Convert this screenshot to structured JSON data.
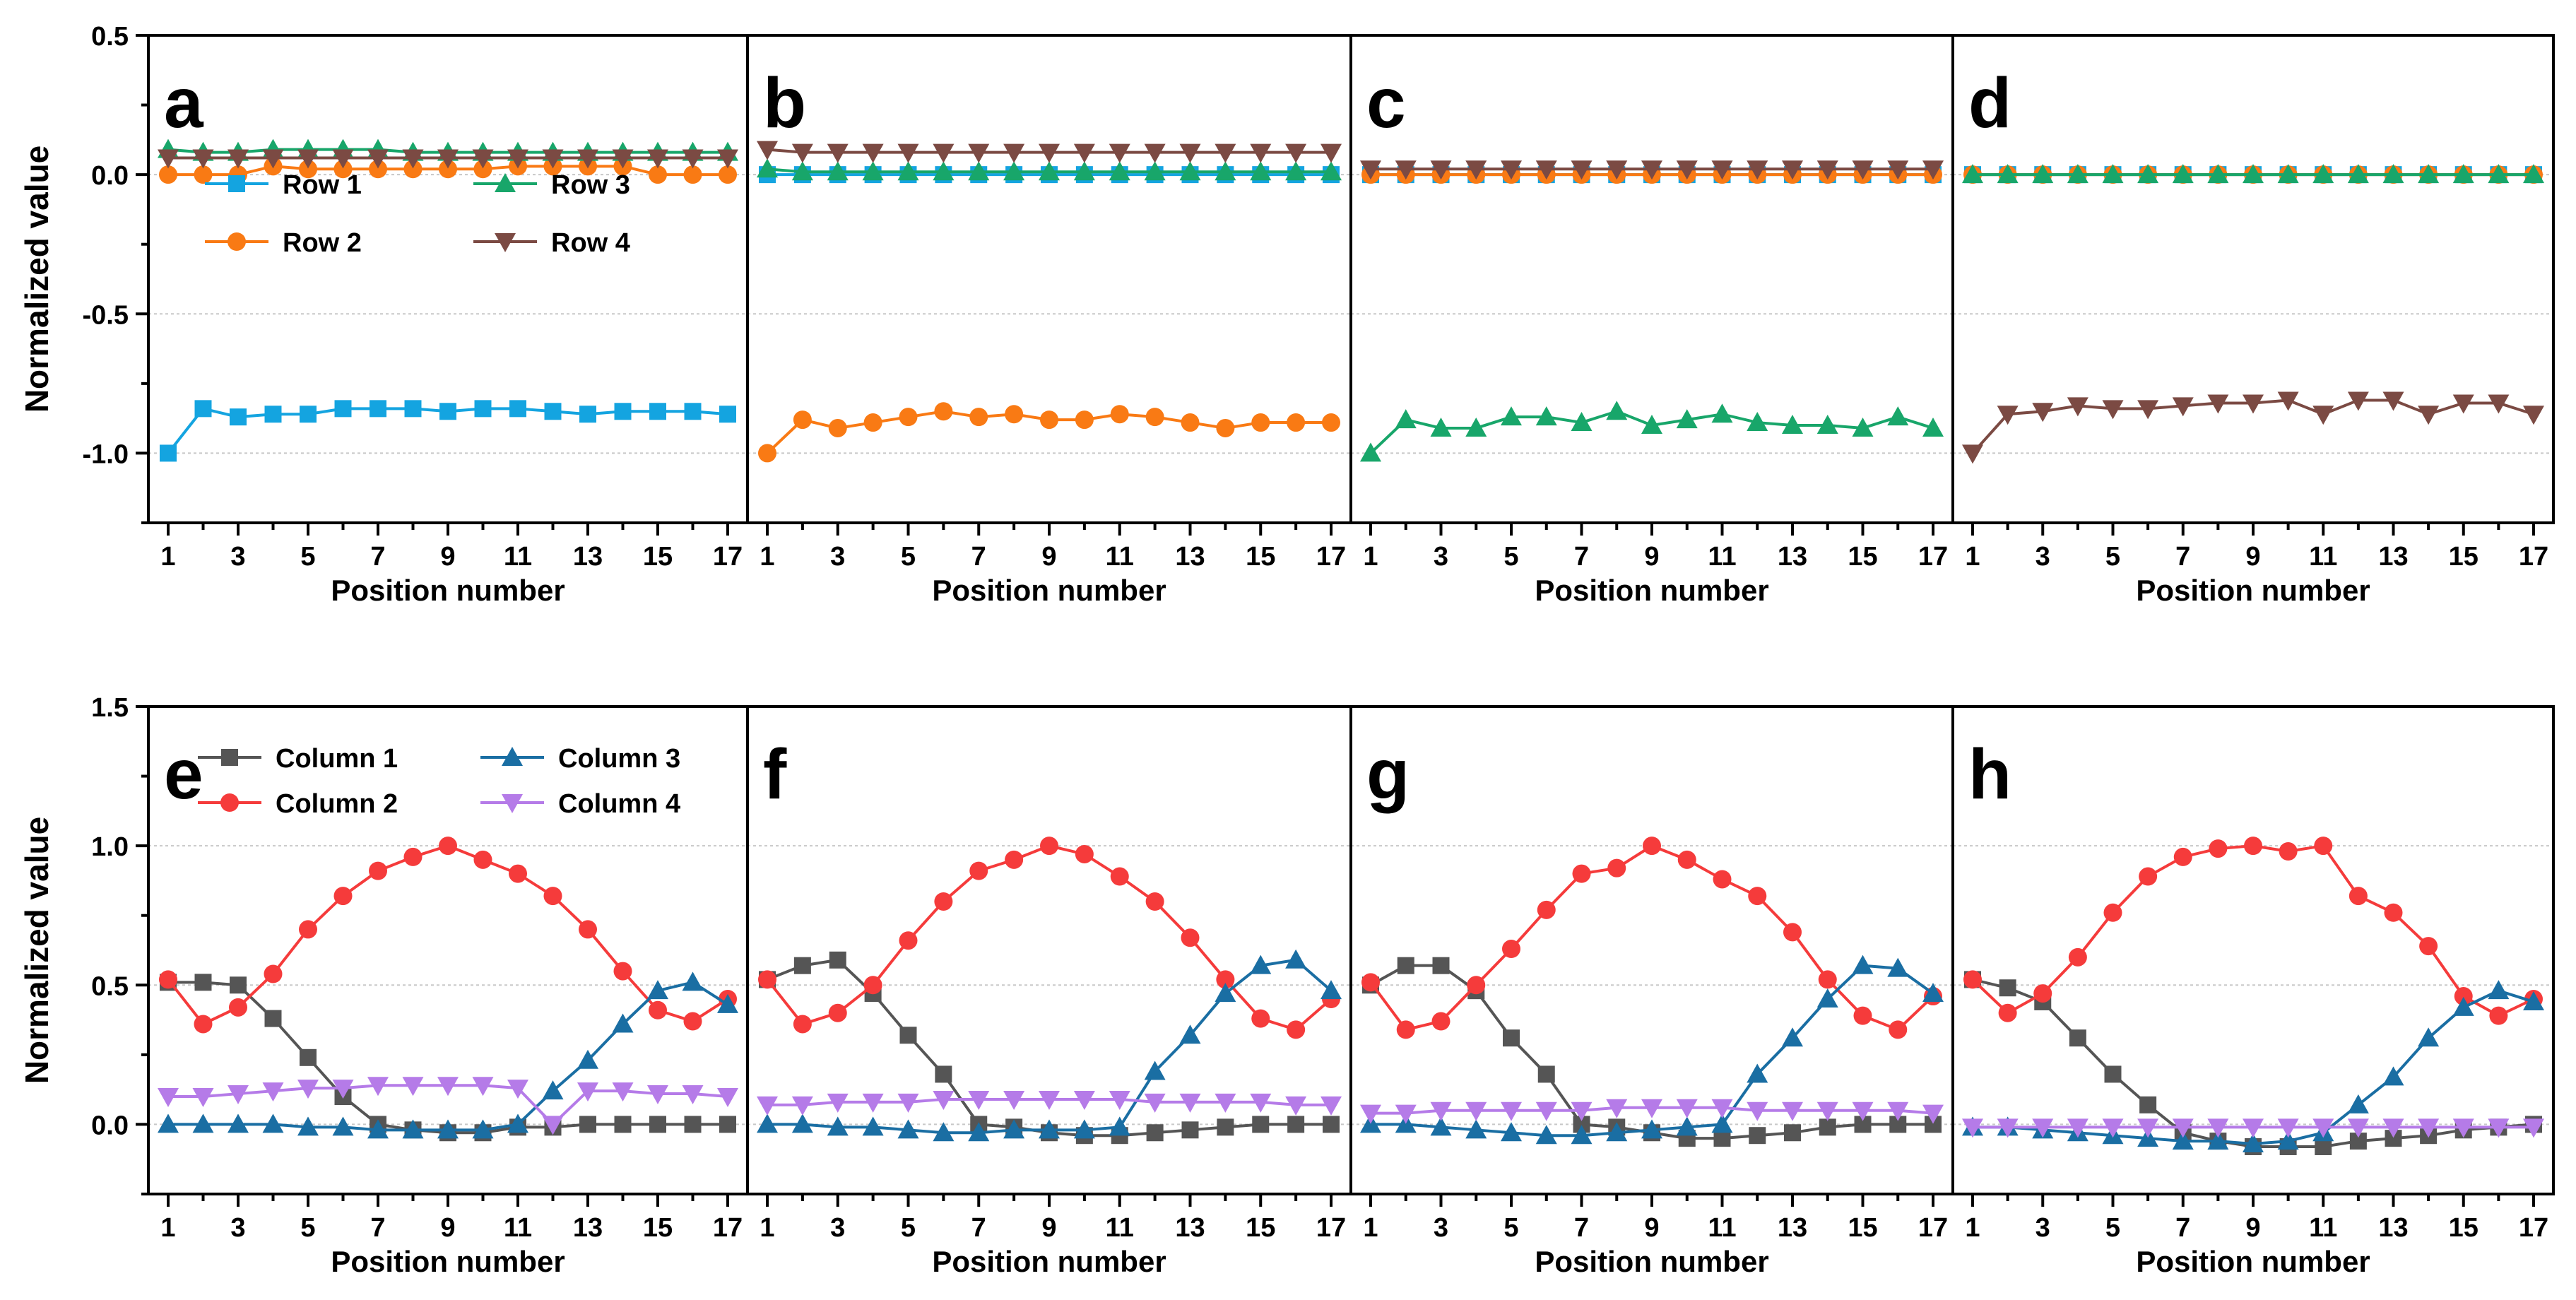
{
  "colors": {
    "row1": "#14a4e0",
    "row2": "#f97a14",
    "row3": "#18a66a",
    "row4": "#7b4a43",
    "col1": "#555555",
    "col2": "#f53b3b",
    "col3": "#1a6ea3",
    "col4": "#b57be8",
    "grid": "#c8c8c8",
    "axis": "#000000"
  },
  "chart_data": [
    {
      "panel": "a",
      "type": "line",
      "ylabel": "Normalized value",
      "xlabel": "Position number",
      "ylim": [
        -1.25,
        0.5
      ],
      "yticks": [
        "0.5",
        "0.0",
        "-0.5",
        "-1.0"
      ],
      "ytick_values": [
        0.5,
        0,
        -0.5,
        -1.0
      ],
      "grid_y": [
        0,
        -0.5,
        -1.0
      ],
      "xticks": [
        "1",
        "3",
        "5",
        "7",
        "9",
        "11",
        "13",
        "15",
        "17"
      ],
      "legend": [
        {
          "name": "Row 1",
          "color": "row1",
          "marker": "square"
        },
        {
          "name": "Row 3",
          "color": "row3",
          "marker": "triangle-up"
        },
        {
          "name": "Row 2",
          "color": "row2",
          "marker": "circle"
        },
        {
          "name": "Row 4",
          "color": "row4",
          "marker": "triangle-down"
        }
      ],
      "series": [
        {
          "name": "Row 1",
          "color": "row1",
          "marker": "square",
          "values": [
            -1.0,
            -0.84,
            -0.87,
            -0.86,
            -0.86,
            -0.84,
            -0.84,
            -0.84,
            -0.85,
            -0.84,
            -0.84,
            -0.85,
            -0.86,
            -0.85,
            -0.85,
            -0.85,
            -0.86
          ]
        },
        {
          "name": "Row 2",
          "color": "row2",
          "marker": "circle",
          "values": [
            0.0,
            0.0,
            0.0,
            0.03,
            0.02,
            0.02,
            0.02,
            0.02,
            0.02,
            0.02,
            0.03,
            0.03,
            0.03,
            0.03,
            0.0,
            0.0,
            0.0
          ]
        },
        {
          "name": "Row 3",
          "color": "row3",
          "marker": "triangle-up",
          "values": [
            0.09,
            0.08,
            0.08,
            0.09,
            0.09,
            0.09,
            0.09,
            0.08,
            0.08,
            0.08,
            0.08,
            0.08,
            0.08,
            0.08,
            0.08,
            0.08,
            0.08
          ]
        },
        {
          "name": "Row 4",
          "color": "row4",
          "marker": "triangle-down",
          "values": [
            0.06,
            0.06,
            0.06,
            0.06,
            0.06,
            0.06,
            0.06,
            0.06,
            0.06,
            0.06,
            0.06,
            0.06,
            0.06,
            0.06,
            0.06,
            0.06,
            0.06
          ]
        }
      ]
    },
    {
      "panel": "b",
      "type": "line",
      "ylim": [
        -1.25,
        0.5
      ],
      "grid_y": [
        0,
        -0.5,
        -1.0
      ],
      "xlabel": "Position number",
      "xticks": [
        "1",
        "3",
        "5",
        "7",
        "9",
        "11",
        "13",
        "15",
        "17"
      ],
      "series": [
        {
          "name": "Row 1",
          "color": "row1",
          "marker": "square",
          "values": [
            0,
            0,
            0,
            0,
            0,
            0,
            0,
            0,
            0,
            0,
            0,
            0,
            0,
            0,
            0,
            0,
            0
          ]
        },
        {
          "name": "Row 2",
          "color": "row2",
          "marker": "circle",
          "values": [
            -1.0,
            -0.88,
            -0.91,
            -0.89,
            -0.87,
            -0.85,
            -0.87,
            -0.86,
            -0.88,
            -0.88,
            -0.86,
            -0.87,
            -0.89,
            -0.91,
            -0.89,
            -0.89,
            -0.89
          ]
        },
        {
          "name": "Row 3",
          "color": "row3",
          "marker": "triangle-up",
          "values": [
            0.02,
            0.01,
            0.01,
            0.01,
            0.01,
            0.01,
            0.01,
            0.01,
            0.01,
            0.01,
            0.01,
            0.01,
            0.01,
            0.01,
            0.01,
            0.01,
            0.01
          ]
        },
        {
          "name": "Row 4",
          "color": "row4",
          "marker": "triangle-down",
          "values": [
            0.09,
            0.08,
            0.08,
            0.08,
            0.08,
            0.08,
            0.08,
            0.08,
            0.08,
            0.08,
            0.08,
            0.08,
            0.08,
            0.08,
            0.08,
            0.08,
            0.08
          ]
        }
      ]
    },
    {
      "panel": "c",
      "type": "line",
      "ylim": [
        -1.25,
        0.5
      ],
      "grid_y": [
        0,
        -0.5,
        -1.0
      ],
      "xlabel": "Position number",
      "xticks": [
        "1",
        "3",
        "5",
        "7",
        "9",
        "11",
        "13",
        "15",
        "17"
      ],
      "series": [
        {
          "name": "Row 1",
          "color": "row1",
          "marker": "square",
          "values": [
            0,
            0,
            0,
            0,
            0,
            0,
            0,
            0,
            0,
            0,
            0,
            0,
            0,
            0,
            0,
            0,
            0
          ]
        },
        {
          "name": "Row 2",
          "color": "row2",
          "marker": "circle",
          "values": [
            0,
            0,
            0,
            0,
            0,
            0,
            0,
            0,
            0,
            0,
            0,
            0,
            0,
            0,
            0,
            0,
            0
          ]
        },
        {
          "name": "Row 3",
          "color": "row3",
          "marker": "triangle-up",
          "values": [
            -1.0,
            -0.88,
            -0.91,
            -0.91,
            -0.87,
            -0.87,
            -0.89,
            -0.85,
            -0.9,
            -0.88,
            -0.86,
            -0.89,
            -0.9,
            -0.9,
            -0.91,
            -0.87,
            -0.91
          ]
        },
        {
          "name": "Row 4",
          "color": "row4",
          "marker": "triangle-down",
          "values": [
            0.02,
            0.02,
            0.02,
            0.02,
            0.02,
            0.02,
            0.02,
            0.02,
            0.02,
            0.02,
            0.02,
            0.02,
            0.02,
            0.02,
            0.02,
            0.02,
            0.02
          ]
        }
      ]
    },
    {
      "panel": "d",
      "type": "line",
      "ylim": [
        -1.25,
        0.5
      ],
      "grid_y": [
        0,
        -0.5,
        -1.0
      ],
      "xlabel": "Position number",
      "xticks": [
        "1",
        "3",
        "5",
        "7",
        "9",
        "11",
        "13",
        "15",
        "17"
      ],
      "series": [
        {
          "name": "Row 1",
          "color": "row1",
          "marker": "square",
          "values": [
            0,
            0,
            0,
            0,
            0,
            0,
            0,
            0,
            0,
            0,
            0,
            0,
            0,
            0,
            0,
            0,
            0
          ]
        },
        {
          "name": "Row 2",
          "color": "row2",
          "marker": "circle",
          "values": [
            0,
            0,
            0,
            0,
            0,
            0,
            0,
            0,
            0,
            0,
            0,
            0,
            0,
            0,
            0,
            0,
            0
          ]
        },
        {
          "name": "Row 3",
          "color": "row3",
          "marker": "triangle-up",
          "values": [
            0,
            0,
            0,
            0,
            0,
            0,
            0,
            0,
            0,
            0,
            0,
            0,
            0,
            0,
            0,
            0,
            0
          ]
        },
        {
          "name": "Row 4",
          "color": "row4",
          "marker": "triangle-down",
          "values": [
            -1.0,
            -0.86,
            -0.85,
            -0.83,
            -0.84,
            -0.84,
            -0.83,
            -0.82,
            -0.82,
            -0.81,
            -0.86,
            -0.81,
            -0.81,
            -0.86,
            -0.82,
            -0.82,
            -0.86
          ]
        }
      ]
    },
    {
      "panel": "e",
      "type": "line",
      "ylabel": "Normalized value",
      "xlabel": "Position number",
      "ylim": [
        -0.25,
        1.5
      ],
      "yticks": [
        "1.5",
        "1.0",
        "0.5",
        "0.0"
      ],
      "ytick_values": [
        1.5,
        1.0,
        0.5,
        0.0
      ],
      "grid_y": [
        0,
        0.5,
        1.0
      ],
      "xticks": [
        "1",
        "3",
        "5",
        "7",
        "9",
        "11",
        "13",
        "15",
        "17"
      ],
      "legend": [
        {
          "name": "Column 1",
          "color": "col1",
          "marker": "square"
        },
        {
          "name": "Column 3",
          "color": "col3",
          "marker": "triangle-up"
        },
        {
          "name": "Column 2",
          "color": "col2",
          "marker": "circle"
        },
        {
          "name": "Column 4",
          "color": "col4",
          "marker": "triangle-down"
        }
      ],
      "series": [
        {
          "name": "Column 1",
          "color": "col1",
          "marker": "square",
          "values": [
            0.51,
            0.51,
            0.5,
            0.38,
            0.24,
            0.1,
            0.0,
            -0.02,
            -0.03,
            -0.03,
            -0.01,
            -0.01,
            0.0,
            0.0,
            0.0,
            0.0,
            0.0
          ]
        },
        {
          "name": "Column 2",
          "color": "col2",
          "marker": "circle",
          "values": [
            0.52,
            0.36,
            0.42,
            0.54,
            0.7,
            0.82,
            0.91,
            0.96,
            1.0,
            0.95,
            0.9,
            0.82,
            0.7,
            0.55,
            0.41,
            0.37,
            0.45
          ]
        },
        {
          "name": "Column 3",
          "color": "col3",
          "marker": "triangle-up",
          "values": [
            0.0,
            0.0,
            0.0,
            0.0,
            -0.01,
            -0.01,
            -0.02,
            -0.02,
            -0.02,
            -0.02,
            0.0,
            0.12,
            0.23,
            0.36,
            0.48,
            0.51,
            0.43
          ]
        },
        {
          "name": "Column 4",
          "color": "col4",
          "marker": "triangle-down",
          "values": [
            0.1,
            0.1,
            0.11,
            0.12,
            0.13,
            0.13,
            0.14,
            0.14,
            0.14,
            0.14,
            0.13,
            0.0,
            0.12,
            0.12,
            0.11,
            0.11,
            0.1
          ]
        }
      ]
    },
    {
      "panel": "f",
      "type": "line",
      "ylim": [
        -0.25,
        1.5
      ],
      "grid_y": [
        0,
        0.5,
        1.0
      ],
      "xlabel": "Position number",
      "xticks": [
        "1",
        "3",
        "5",
        "7",
        "9",
        "11",
        "13",
        "15",
        "17"
      ],
      "series": [
        {
          "name": "Column 1",
          "color": "col1",
          "marker": "square",
          "values": [
            0.52,
            0.57,
            0.59,
            0.47,
            0.32,
            0.18,
            0.0,
            -0.01,
            -0.03,
            -0.04,
            -0.04,
            -0.03,
            -0.02,
            -0.01,
            0.0,
            0.0,
            0.0
          ]
        },
        {
          "name": "Column 2",
          "color": "col2",
          "marker": "circle",
          "values": [
            0.52,
            0.36,
            0.4,
            0.5,
            0.66,
            0.8,
            0.91,
            0.95,
            1.0,
            0.97,
            0.89,
            0.8,
            0.67,
            0.52,
            0.38,
            0.34,
            0.45
          ]
        },
        {
          "name": "Column 3",
          "color": "col3",
          "marker": "triangle-up",
          "values": [
            0.0,
            0.0,
            -0.01,
            -0.01,
            -0.02,
            -0.03,
            -0.03,
            -0.02,
            -0.02,
            -0.02,
            -0.01,
            0.19,
            0.32,
            0.47,
            0.57,
            0.59,
            0.48
          ]
        },
        {
          "name": "Column 4",
          "color": "col4",
          "marker": "triangle-down",
          "values": [
            0.07,
            0.07,
            0.08,
            0.08,
            0.08,
            0.09,
            0.09,
            0.09,
            0.09,
            0.09,
            0.09,
            0.08,
            0.08,
            0.08,
            0.08,
            0.07,
            0.07
          ]
        }
      ]
    },
    {
      "panel": "g",
      "type": "line",
      "ylim": [
        -0.25,
        1.5
      ],
      "grid_y": [
        0,
        0.5,
        1.0
      ],
      "xlabel": "Position number",
      "xticks": [
        "1",
        "3",
        "5",
        "7",
        "9",
        "11",
        "13",
        "15",
        "17"
      ],
      "series": [
        {
          "name": "Column 1",
          "color": "col1",
          "marker": "square",
          "values": [
            0.5,
            0.57,
            0.57,
            0.48,
            0.31,
            0.18,
            0.0,
            -0.01,
            -0.03,
            -0.05,
            -0.05,
            -0.04,
            -0.03,
            -0.01,
            0.0,
            0.0,
            0.0
          ]
        },
        {
          "name": "Column 2",
          "color": "col2",
          "marker": "circle",
          "values": [
            0.51,
            0.34,
            0.37,
            0.5,
            0.63,
            0.77,
            0.9,
            0.92,
            1.0,
            0.95,
            0.88,
            0.82,
            0.69,
            0.52,
            0.39,
            0.34,
            0.46
          ]
        },
        {
          "name": "Column 3",
          "color": "col3",
          "marker": "triangle-up",
          "values": [
            0.0,
            0.0,
            -0.01,
            -0.02,
            -0.03,
            -0.04,
            -0.04,
            -0.03,
            -0.02,
            -0.01,
            0.0,
            0.18,
            0.31,
            0.45,
            0.57,
            0.56,
            0.47
          ]
        },
        {
          "name": "Column 4",
          "color": "col4",
          "marker": "triangle-down",
          "values": [
            0.04,
            0.04,
            0.05,
            0.05,
            0.05,
            0.05,
            0.05,
            0.06,
            0.06,
            0.06,
            0.06,
            0.05,
            0.05,
            0.05,
            0.05,
            0.05,
            0.04
          ]
        }
      ]
    },
    {
      "panel": "h",
      "type": "line",
      "ylim": [
        -0.25,
        1.5
      ],
      "grid_y": [
        0,
        0.5,
        1.0
      ],
      "xlabel": "Position number",
      "xticks": [
        "1",
        "3",
        "5",
        "7",
        "9",
        "11",
        "13",
        "15",
        "17"
      ],
      "series": [
        {
          "name": "Column 1",
          "color": "col1",
          "marker": "square",
          "values": [
            0.52,
            0.49,
            0.44,
            0.31,
            0.18,
            0.07,
            -0.03,
            -0.06,
            -0.08,
            -0.08,
            -0.08,
            -0.06,
            -0.05,
            -0.04,
            -0.02,
            -0.01,
            0.0
          ]
        },
        {
          "name": "Column 2",
          "color": "col2",
          "marker": "circle",
          "values": [
            0.52,
            0.4,
            0.47,
            0.6,
            0.76,
            0.89,
            0.96,
            0.99,
            1.0,
            0.98,
            1.0,
            0.82,
            0.76,
            0.64,
            0.46,
            0.39,
            0.45
          ]
        },
        {
          "name": "Column 3",
          "color": "col3",
          "marker": "triangle-up",
          "values": [
            -0.01,
            -0.01,
            -0.02,
            -0.03,
            -0.04,
            -0.05,
            -0.06,
            -0.06,
            -0.07,
            -0.06,
            -0.03,
            0.07,
            0.17,
            0.31,
            0.42,
            0.48,
            0.44
          ]
        },
        {
          "name": "Column 4",
          "color": "col4",
          "marker": "triangle-down",
          "values": [
            -0.01,
            -0.01,
            -0.01,
            -0.01,
            -0.01,
            -0.01,
            -0.01,
            -0.01,
            -0.01,
            -0.01,
            -0.01,
            -0.01,
            -0.01,
            -0.01,
            -0.01,
            -0.01,
            -0.01
          ]
        }
      ]
    }
  ]
}
